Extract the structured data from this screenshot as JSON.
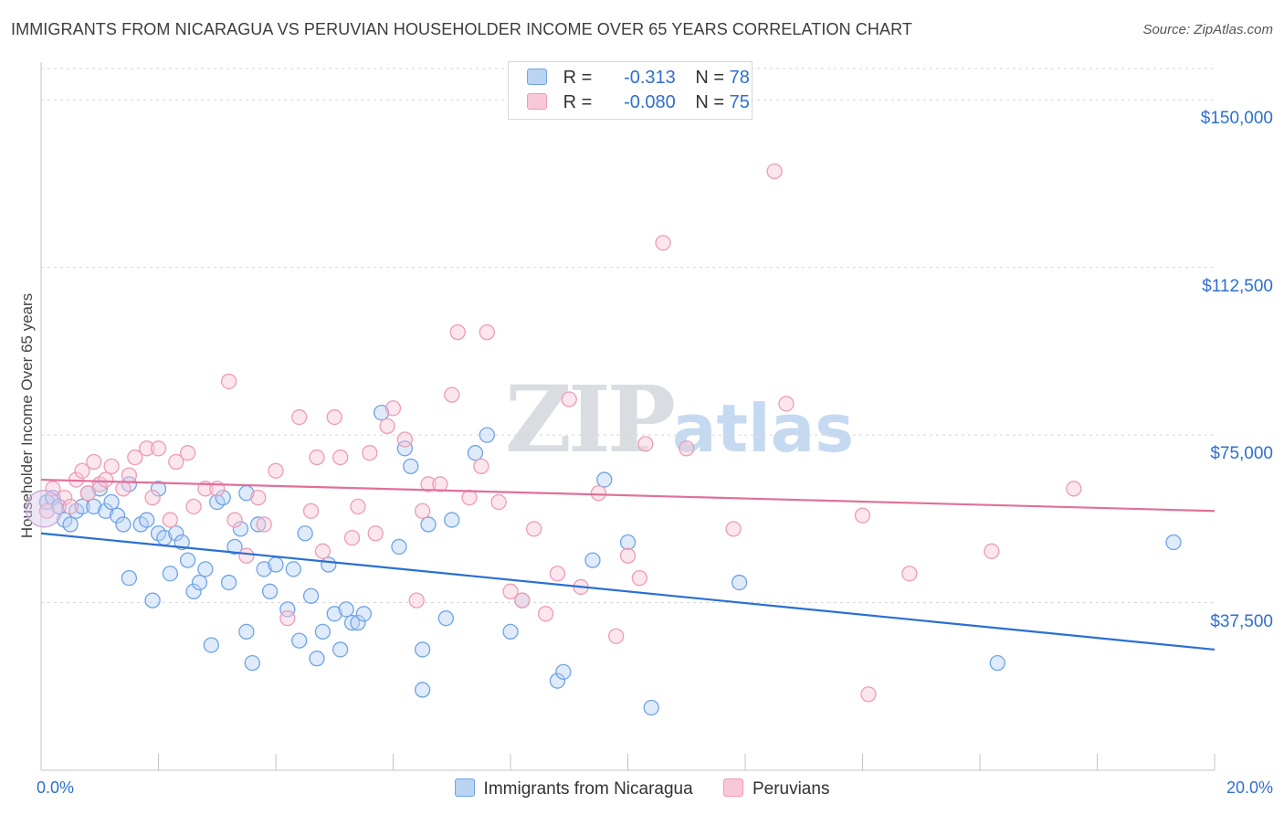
{
  "header": {
    "title": "IMMIGRANTS FROM NICARAGUA VS PERUVIAN HOUSEHOLDER INCOME OVER 65 YEARS CORRELATION CHART",
    "source": "Source: ZipAtlas.com"
  },
  "watermark": {
    "zip": "ZIP",
    "atlas": "atlas"
  },
  "legend": {
    "rows": [
      {
        "r_label": "R =",
        "r_value": "-0.313",
        "n_label": "N =",
        "n_value": "78",
        "color": "#a8c8f0"
      },
      {
        "r_label": "R =",
        "r_value": "-0.080",
        "n_label": "N =",
        "n_value": "75",
        "color": "#f8c0d0"
      }
    ]
  },
  "chart_data": {
    "type": "scatter",
    "title": "IMMIGRANTS FROM NICARAGUA VS PERUVIAN HOUSEHOLDER INCOME OVER 65 YEARS CORRELATION CHART",
    "xlabel": "",
    "ylabel": "Householder Income Over 65 years",
    "xlim": [
      0,
      20
    ],
    "ylim": [
      0,
      157000
    ],
    "x_tick_labels": [
      "0.0%",
      "20.0%"
    ],
    "y_ticks": [
      37500,
      75000,
      112500,
      150000
    ],
    "y_tick_labels": [
      "$37,500",
      "$75,000",
      "$112,500",
      "$150,000"
    ],
    "grid": true,
    "legend_position": "bottom",
    "series": [
      {
        "name": "Immigrants from Nicaragua",
        "color": "#6fa3e6",
        "fill": "#b9d3f3",
        "trend": {
          "x": [
            0,
            20
          ],
          "y": [
            53000,
            27000
          ],
          "color": "#2a6fd1"
        },
        "points": [
          [
            0.1,
            60000
          ],
          [
            0.2,
            61000
          ],
          [
            0.3,
            59000
          ],
          [
            0.4,
            56000
          ],
          [
            0.5,
            55000
          ],
          [
            0.6,
            58000
          ],
          [
            0.7,
            59000
          ],
          [
            0.8,
            62000
          ],
          [
            0.9,
            59000
          ],
          [
            1.0,
            63000
          ],
          [
            1.1,
            58000
          ],
          [
            1.2,
            60000
          ],
          [
            1.3,
            57000
          ],
          [
            1.4,
            55000
          ],
          [
            1.5,
            43000
          ],
          [
            1.5,
            64000
          ],
          [
            1.7,
            55000
          ],
          [
            1.8,
            56000
          ],
          [
            1.9,
            38000
          ],
          [
            2.0,
            53000
          ],
          [
            2.1,
            52000
          ],
          [
            2.2,
            44000
          ],
          [
            2.3,
            53000
          ],
          [
            2.4,
            51000
          ],
          [
            2.5,
            47000
          ],
          [
            2.6,
            40000
          ],
          [
            2.7,
            42000
          ],
          [
            2.8,
            45000
          ],
          [
            2.9,
            28000
          ],
          [
            3.0,
            60000
          ],
          [
            3.1,
            61000
          ],
          [
            3.2,
            42000
          ],
          [
            3.3,
            50000
          ],
          [
            3.4,
            54000
          ],
          [
            3.5,
            31000
          ],
          [
            3.5,
            62000
          ],
          [
            3.6,
            24000
          ],
          [
            3.7,
            55000
          ],
          [
            3.8,
            45000
          ],
          [
            3.9,
            40000
          ],
          [
            4.0,
            46000
          ],
          [
            4.2,
            36000
          ],
          [
            4.3,
            45000
          ],
          [
            4.4,
            29000
          ],
          [
            4.5,
            53000
          ],
          [
            4.6,
            39000
          ],
          [
            4.7,
            25000
          ],
          [
            4.8,
            31000
          ],
          [
            4.9,
            46000
          ],
          [
            5.0,
            35000
          ],
          [
            5.1,
            27000
          ],
          [
            5.2,
            36000
          ],
          [
            5.3,
            33000
          ],
          [
            5.4,
            33000
          ],
          [
            5.5,
            35000
          ],
          [
            5.8,
            80000
          ],
          [
            6.1,
            50000
          ],
          [
            6.2,
            72000
          ],
          [
            6.3,
            68000
          ],
          [
            6.5,
            27000
          ],
          [
            6.6,
            55000
          ],
          [
            6.9,
            34000
          ],
          [
            7.0,
            56000
          ],
          [
            7.4,
            71000
          ],
          [
            7.6,
            75000
          ],
          [
            8.0,
            31000
          ],
          [
            8.2,
            38000
          ],
          [
            8.8,
            20000
          ],
          [
            8.9,
            22000
          ],
          [
            9.4,
            47000
          ],
          [
            9.6,
            65000
          ],
          [
            10.0,
            51000
          ],
          [
            10.4,
            14000
          ],
          [
            6.5,
            18000
          ],
          [
            11.9,
            42000
          ],
          [
            16.3,
            24000
          ],
          [
            19.3,
            51000
          ],
          [
            2.0,
            63000
          ]
        ]
      },
      {
        "name": "Peruvians",
        "color": "#ee9bb6",
        "fill": "#f9c8d8",
        "trend": {
          "x": [
            0,
            20
          ],
          "y": [
            65000,
            58000
          ],
          "color": "#e0709a"
        },
        "points": [
          [
            0.2,
            63000
          ],
          [
            0.4,
            61000
          ],
          [
            0.5,
            59000
          ],
          [
            0.6,
            65000
          ],
          [
            0.7,
            67000
          ],
          [
            0.8,
            62000
          ],
          [
            0.9,
            69000
          ],
          [
            1.0,
            64000
          ],
          [
            1.1,
            65000
          ],
          [
            1.2,
            68000
          ],
          [
            1.4,
            63000
          ],
          [
            1.5,
            66000
          ],
          [
            1.6,
            70000
          ],
          [
            1.8,
            72000
          ],
          [
            1.9,
            61000
          ],
          [
            2.0,
            72000
          ],
          [
            2.2,
            56000
          ],
          [
            2.3,
            69000
          ],
          [
            2.5,
            71000
          ],
          [
            2.6,
            59000
          ],
          [
            2.8,
            63000
          ],
          [
            3.0,
            63000
          ],
          [
            3.2,
            87000
          ],
          [
            3.3,
            56000
          ],
          [
            3.5,
            48000
          ],
          [
            3.7,
            61000
          ],
          [
            3.8,
            55000
          ],
          [
            4.0,
            67000
          ],
          [
            4.2,
            34000
          ],
          [
            4.4,
            79000
          ],
          [
            4.6,
            58000
          ],
          [
            4.7,
            70000
          ],
          [
            4.8,
            49000
          ],
          [
            5.0,
            79000
          ],
          [
            5.1,
            70000
          ],
          [
            5.3,
            52000
          ],
          [
            5.4,
            59000
          ],
          [
            5.6,
            71000
          ],
          [
            5.7,
            53000
          ],
          [
            5.9,
            77000
          ],
          [
            6.0,
            81000
          ],
          [
            6.2,
            74000
          ],
          [
            6.4,
            38000
          ],
          [
            6.5,
            58000
          ],
          [
            6.6,
            64000
          ],
          [
            6.8,
            64000
          ],
          [
            7.0,
            84000
          ],
          [
            7.1,
            98000
          ],
          [
            7.3,
            61000
          ],
          [
            7.5,
            68000
          ],
          [
            7.6,
            98000
          ],
          [
            7.8,
            60000
          ],
          [
            8.0,
            40000
          ],
          [
            8.2,
            38000
          ],
          [
            8.4,
            54000
          ],
          [
            8.6,
            35000
          ],
          [
            8.8,
            44000
          ],
          [
            9.0,
            83000
          ],
          [
            9.2,
            41000
          ],
          [
            9.5,
            62000
          ],
          [
            9.8,
            30000
          ],
          [
            10.0,
            48000
          ],
          [
            10.2,
            43000
          ],
          [
            10.3,
            73000
          ],
          [
            10.6,
            118000
          ],
          [
            11.0,
            72000
          ],
          [
            11.8,
            54000
          ],
          [
            12.5,
            134000
          ],
          [
            12.7,
            82000
          ],
          [
            14.0,
            57000
          ],
          [
            14.1,
            17000
          ],
          [
            14.8,
            44000
          ],
          [
            16.2,
            49000
          ],
          [
            17.6,
            63000
          ],
          [
            0.1,
            58000
          ]
        ]
      }
    ]
  },
  "bottom_legend": {
    "items": [
      {
        "label": "Immigrants from Nicaragua",
        "color": "#b9d3f3",
        "border": "#6fa3e6"
      },
      {
        "label": "Peruvians",
        "color": "#f9c8d8",
        "border": "#ee9bb6"
      }
    ]
  }
}
